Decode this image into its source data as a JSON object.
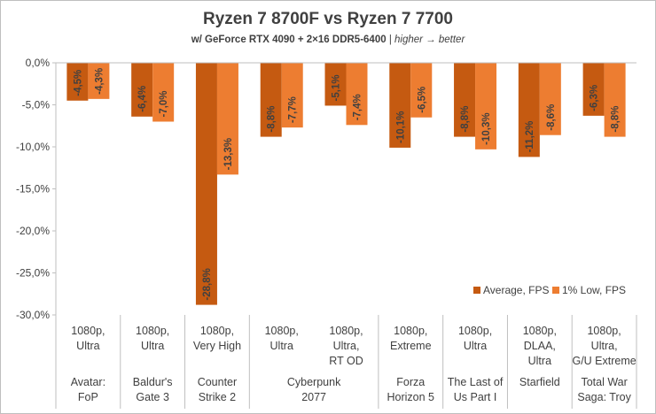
{
  "chart_data": {
    "type": "bar",
    "title": "Ryzen 7 8700F vs Ryzen 7 7700",
    "subtitle": {
      "main": "w/ GeForce RTX 4090 + 2×16 DDR5-6400",
      "separator": " | ",
      "note": "higher → better"
    },
    "ylim": [
      -30,
      0
    ],
    "yticks": [
      0,
      -5,
      -10,
      -15,
      -20,
      -25,
      -30
    ],
    "ytick_labels": [
      "0,0%",
      "-5,0%",
      "-10,0%",
      "-15,0%",
      "-20,0%",
      "-25,0%",
      "-30,0%"
    ],
    "grid": false,
    "legend_position": "bottom-right",
    "colors": {
      "average": "#c55a11",
      "low": "#ed7d31",
      "axis": "#bfbfbf",
      "text": "#404040"
    },
    "games": [
      {
        "name": "Avatar:\nFoP",
        "span": 1
      },
      {
        "name": "Baldur's\nGate 3",
        "span": 1
      },
      {
        "name": "Counter\nStrike 2",
        "span": 1
      },
      {
        "name": "Cyberpunk\n2077",
        "span": 2
      },
      {
        "name": "Forza\nHorizon 5",
        "span": 1
      },
      {
        "name": "The Last of\nUs Part I",
        "span": 1
      },
      {
        "name": "Starfield",
        "span": 1
      },
      {
        "name": "Total War\nSaga: Troy",
        "span": 1
      }
    ],
    "categories": [
      "1080p,\nUltra",
      "1080p,\nUltra",
      "1080p,\nVery High",
      "1080p,\nUltra",
      "1080p,\nUltra,\nRT OD",
      "1080p,\nExtreme",
      "1080p,\nUltra",
      "1080p,\nDLAA,\nUltra",
      "1080p,\nUltra,\nG/U Extreme"
    ],
    "series": [
      {
        "name": "Average, FPS",
        "values": [
          -4.5,
          -6.4,
          -28.8,
          -8.8,
          -5.1,
          -10.1,
          -8.8,
          -11.2,
          -6.3
        ],
        "labels": [
          "-4,5%",
          "-6,4%",
          "-28,8%",
          "-8,8%",
          "-5,1%",
          "-10,1%",
          "-8,8%",
          "-11,2%",
          "-6,3%"
        ]
      },
      {
        "name": "1% Low, FPS",
        "values": [
          -4.3,
          -7.0,
          -13.3,
          -7.7,
          -7.4,
          -6.5,
          -10.3,
          -8.6,
          -8.8
        ],
        "labels": [
          "-4,3%",
          "-7,0%",
          "-13,3%",
          "-7,7%",
          "-7,4%",
          "-6,5%",
          "-10,3%",
          "-8,6%",
          "-8,8%"
        ]
      }
    ]
  }
}
